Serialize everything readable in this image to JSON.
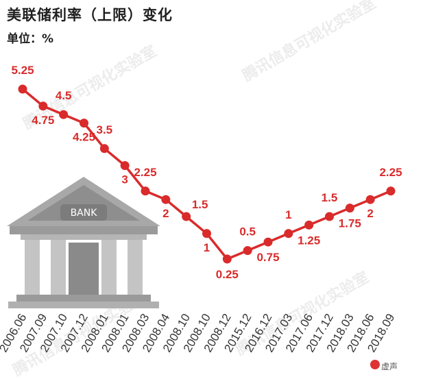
{
  "header": {
    "title": "美联储利率（上限）变化",
    "unit": "单位：%"
  },
  "watermark": "腾讯信息可视化实验室",
  "bank_label": "BANK",
  "brand": {
    "icon": "speaker-icon",
    "text": "虚声"
  },
  "colors": {
    "accent": "#d92b2b",
    "label": "#d92b2b",
    "axis_text": "#333333",
    "bank_gray": "#9a9a9a"
  },
  "chart_data": {
    "type": "line",
    "title": "美联储利率（上限）变化",
    "ylabel": "单位：%",
    "categories": [
      "2006.06",
      "2007.09",
      "2007.10",
      "2007.12",
      "2008.01",
      "2008.01",
      "2008.03",
      "2008.04",
      "2008.10",
      "2008.10",
      "2008.12",
      "2015.12",
      "2016.12",
      "2017.03",
      "2017.06",
      "2017.12",
      "2018.03",
      "2018.06",
      "2018.09"
    ],
    "values": [
      5.25,
      4.75,
      4.5,
      4.25,
      3.5,
      3,
      2.25,
      2,
      1.5,
      1,
      0.25,
      0.5,
      0.75,
      1,
      1.25,
      1.5,
      1.75,
      2,
      2.25
    ],
    "value_labels": [
      "5.25",
      "4.75",
      "4.5",
      "4.25",
      "3.5",
      "3",
      "2.25",
      "2",
      "1.5",
      "1",
      "0.25",
      "0.5",
      "0.75",
      "1",
      "1.25",
      "1.5",
      "1.75",
      "2",
      "2.25"
    ],
    "ylim": [
      0,
      5.5
    ],
    "grid": false
  }
}
